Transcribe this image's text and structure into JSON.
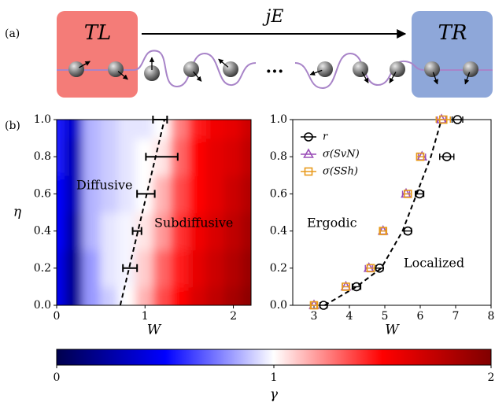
{
  "schematic": {
    "panel_label": "(a)",
    "left_bath": "TL",
    "right_bath": "TR",
    "current": "jE",
    "ellipsis": "···"
  },
  "chart_data": [
    {
      "type": "heatmap",
      "panel_label": "(b)",
      "x_label": "W",
      "y_label": "η",
      "xlim": [
        0,
        2.2
      ],
      "ylim": [
        0,
        1
      ],
      "xticks": [
        0,
        1,
        2
      ],
      "yticks": [
        {
          "value": 0,
          "label": "0.0"
        },
        {
          "value": 0.2,
          "label": "0.2"
        },
        {
          "value": 0.4,
          "label": "0.4"
        },
        {
          "value": 0.6,
          "label": "0.6"
        },
        {
          "value": 0.8,
          "label": "0.8"
        },
        {
          "value": 1,
          "label": "1.0"
        }
      ],
      "x": [
        0,
        0.2,
        0.4,
        0.6,
        0.8,
        1.0,
        1.2,
        1.4,
        1.6,
        1.8,
        2.0,
        2.2
      ],
      "y": [
        0,
        0.2,
        0.4,
        0.6,
        0.8,
        1.0
      ],
      "z": [
        [
          0.45,
          0.2,
          0.8,
          0.9,
          1.0,
          1.15,
          1.35,
          1.5,
          1.65,
          1.75,
          1.85,
          1.95
        ],
        [
          0.45,
          0.2,
          0.8,
          0.95,
          0.98,
          1.1,
          1.3,
          1.45,
          1.6,
          1.7,
          1.8,
          1.9
        ],
        [
          0.5,
          0.25,
          0.85,
          0.95,
          0.98,
          1.05,
          1.2,
          1.4,
          1.55,
          1.65,
          1.75,
          1.85
        ],
        [
          0.5,
          0.3,
          0.85,
          0.9,
          0.95,
          1.0,
          1.15,
          1.35,
          1.5,
          1.6,
          1.7,
          1.8
        ],
        [
          0.55,
          0.3,
          0.85,
          0.9,
          0.95,
          1.0,
          1.05,
          1.3,
          1.5,
          1.6,
          1.65,
          1.75
        ],
        [
          0.55,
          0.35,
          0.85,
          0.9,
          0.95,
          0.95,
          1.0,
          1.25,
          1.45,
          1.55,
          1.6,
          1.7
        ]
      ],
      "colormap": "seismic",
      "annotations": [
        "Diffusive",
        "Subdiffusive"
      ],
      "transition": {
        "color": "#000000",
        "y": [
          0.2,
          0.4,
          0.6,
          0.8,
          1.0
        ],
        "x": [
          0.83,
          0.91,
          1.01,
          1.19,
          1.17
        ],
        "xerr": [
          0.08,
          0.05,
          0.1,
          0.18,
          0.08
        ]
      },
      "fit_line": {
        "x": [
          0.72,
          1.22
        ],
        "y": [
          0,
          1
        ]
      },
      "colorbar": {
        "lim": [
          0,
          2
        ],
        "ticks": [
          0,
          1,
          2
        ],
        "label": "γ"
      }
    },
    {
      "type": "scatter",
      "x_label": "W",
      "xlim": [
        2.4,
        8
      ],
      "ylim": [
        0,
        1
      ],
      "xticks": [
        3,
        4,
        5,
        6,
        7,
        8
      ],
      "yticks": [
        {
          "value": 0,
          "label": "0.0"
        },
        {
          "value": 0.2,
          "label": "0.2"
        },
        {
          "value": 0.4,
          "label": "0.4"
        },
        {
          "value": 0.6,
          "label": "0.6"
        },
        {
          "value": 0.8,
          "label": "0.8"
        },
        {
          "value": 1,
          "label": "1.0"
        }
      ],
      "annotations": [
        "Ergodic",
        "Localized"
      ],
      "series": [
        {
          "name": "r",
          "color": "#000000",
          "marker": "circle",
          "y": [
            0,
            0.1,
            0.2,
            0.4,
            0.6,
            0.8,
            1.0
          ],
          "x": [
            3.27,
            4.2,
            4.85,
            5.65,
            5.98,
            6.75,
            7.05
          ],
          "xerr": [
            0.1,
            0.12,
            0.1,
            0.1,
            0.12,
            0.2,
            0.15
          ]
        },
        {
          "name": "σ(SvN)",
          "color": "#9b4fb8",
          "marker": "triangle",
          "y": [
            0,
            0.1,
            0.2,
            0.4,
            0.6,
            0.8,
            1.0
          ],
          "x": [
            3.0,
            3.9,
            4.55,
            4.95,
            5.6,
            6.05,
            6.6
          ],
          "xerr": [
            0.08,
            0.1,
            0.1,
            0.08,
            0.1,
            0.1,
            0.12
          ]
        },
        {
          "name": "σ(SSh)",
          "color": "#e89a1c",
          "marker": "square",
          "y": [
            0,
            0.1,
            0.2,
            0.4,
            0.6,
            0.8,
            1.0
          ],
          "x": [
            3.0,
            3.9,
            4.6,
            4.95,
            5.65,
            6.0,
            6.65
          ],
          "xerr": [
            0.08,
            0.1,
            0.1,
            0.08,
            0.1,
            0.1,
            0.2
          ]
        }
      ],
      "fit_line": {
        "x": [
          3.3,
          4.2,
          4.9,
          5.5,
          5.9,
          6.3,
          6.6
        ],
        "y": [
          0,
          0.1,
          0.2,
          0.4,
          0.6,
          0.8,
          1.0
        ]
      }
    }
  ]
}
